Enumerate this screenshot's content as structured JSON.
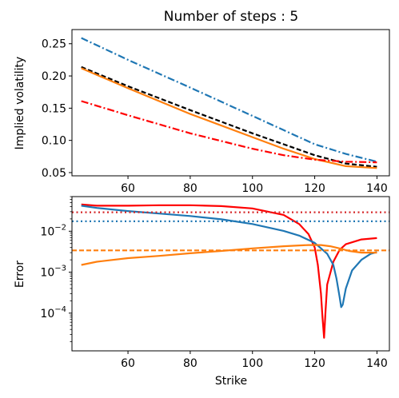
{
  "chart_data": [
    {
      "type": "line",
      "title": "Number of steps : 5",
      "xlabel": "",
      "ylabel": "Implied volatility",
      "xlim": [
        42,
        144
      ],
      "ylim": [
        0.045,
        0.272
      ],
      "xticks": [
        60,
        80,
        100,
        120,
        140
      ],
      "yticks": [
        0.05,
        0.1,
        0.15,
        0.2,
        0.25
      ],
      "ytick_labels": [
        "0.05",
        "0.10",
        "0.15",
        "0.20",
        "0.25"
      ],
      "series": [
        {
          "color": "#1f77b4",
          "style": "dashdot",
          "x": [
            45,
            60,
            80,
            100,
            110,
            120,
            130,
            140
          ],
          "y": [
            0.259,
            0.225,
            0.182,
            0.138,
            0.116,
            0.094,
            0.079,
            0.067
          ]
        },
        {
          "color": "#000000",
          "style": "dashed",
          "x": [
            45,
            60,
            80,
            100,
            110,
            120,
            130,
            140
          ],
          "y": [
            0.214,
            0.184,
            0.147,
            0.111,
            0.094,
            0.077,
            0.064,
            0.059
          ]
        },
        {
          "color": "#ff7f0e",
          "style": "solid",
          "x": [
            45,
            60,
            80,
            100,
            110,
            120,
            130,
            140
          ],
          "y": [
            0.212,
            0.181,
            0.141,
            0.105,
            0.087,
            0.071,
            0.06,
            0.057
          ]
        },
        {
          "color": "#ff0000",
          "style": "dashdot",
          "x": [
            45,
            60,
            80,
            100,
            110,
            120,
            130,
            140
          ],
          "y": [
            0.161,
            0.139,
            0.111,
            0.087,
            0.077,
            0.07,
            0.067,
            0.066
          ]
        }
      ]
    },
    {
      "type": "line",
      "title": "",
      "xlabel": "Strike",
      "ylabel": "Error",
      "yscale": "log",
      "xlim": [
        42,
        144
      ],
      "ylim": [
        1.2e-05,
        0.07
      ],
      "xticks": [
        60,
        80,
        100,
        120,
        140
      ],
      "yticks": [
        0.01,
        0.001,
        0.0001
      ],
      "ytick_labels": [
        {
          "base": "10",
          "exp": "−2"
        },
        {
          "base": "10",
          "exp": "−3"
        },
        {
          "base": "10",
          "exp": "−4"
        }
      ],
      "series": [
        {
          "color": "#ff0000",
          "style": "solid",
          "x": [
            45,
            50,
            60,
            70,
            80,
            90,
            100,
            110,
            115,
            118,
            120,
            121,
            122,
            122.5,
            123,
            123.5,
            124,
            126,
            128,
            130,
            135,
            140
          ],
          "y": [
            0.045,
            0.042,
            0.042,
            0.043,
            0.043,
            0.041,
            0.036,
            0.025,
            0.015,
            0.0085,
            0.004,
            0.0015,
            0.0003,
            8e-05,
            2.5e-05,
            0.00012,
            0.0005,
            0.0018,
            0.0035,
            0.0048,
            0.0063,
            0.0068
          ]
        },
        {
          "color": "#1f77b4",
          "style": "solid",
          "x": [
            45,
            50,
            60,
            70,
            80,
            90,
            100,
            110,
            115,
            120,
            124,
            126,
            127,
            128,
            128.5,
            129,
            130,
            132,
            135,
            138,
            140
          ],
          "y": [
            0.042,
            0.037,
            0.031,
            0.027,
            0.0235,
            0.0195,
            0.015,
            0.0102,
            0.0078,
            0.0052,
            0.0028,
            0.0015,
            0.0007,
            0.00025,
            0.00014,
            0.00016,
            0.0004,
            0.0011,
            0.002,
            0.0028,
            0.0031
          ]
        },
        {
          "color": "#ff7f0e",
          "style": "solid",
          "x": [
            45,
            50,
            60,
            70,
            80,
            90,
            100,
            110,
            118,
            122,
            125,
            128,
            131,
            135,
            140
          ],
          "y": [
            0.0015,
            0.0018,
            0.0022,
            0.0025,
            0.0029,
            0.0033,
            0.0038,
            0.0043,
            0.0046,
            0.0046,
            0.0043,
            0.0038,
            0.0033,
            0.003,
            0.003
          ]
        },
        {
          "color": "#d62728",
          "style": "dotted",
          "x": [
            42,
            144
          ],
          "y": [
            0.029,
            0.029
          ]
        },
        {
          "color": "#1f77b4",
          "style": "dotted",
          "x": [
            42,
            144
          ],
          "y": [
            0.0175,
            0.0175
          ]
        },
        {
          "color": "#ff7f0e",
          "style": "dashed",
          "x": [
            42,
            144
          ],
          "y": [
            0.0034,
            0.0034
          ]
        }
      ]
    }
  ]
}
